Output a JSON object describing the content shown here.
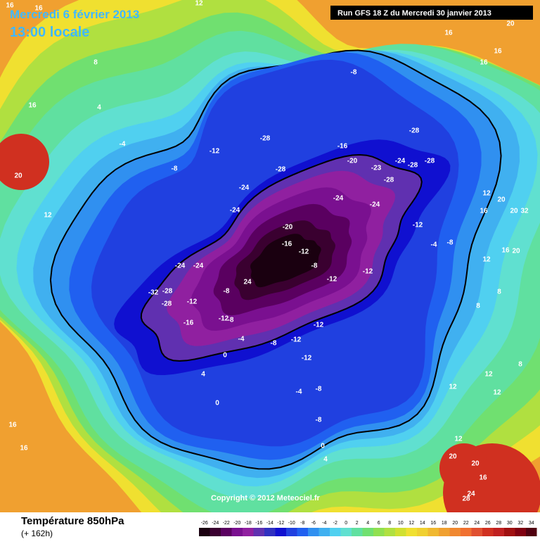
{
  "header": {
    "title": "Mercredi 6 février 2013",
    "time": "13:00 locale",
    "run": "Run GFS 18 Z du Mercredi 30 janvier 2013"
  },
  "footer": {
    "title": "Température 850hPa",
    "lead": "(+ 162h)",
    "copyright": "Copyright © 2012 Meteociel.fr"
  },
  "colorbar": {
    "ticks": [
      -26,
      -24,
      -22,
      -20,
      -18,
      -16,
      -14,
      -12,
      -10,
      -8,
      -6,
      -4,
      -2,
      0,
      2,
      4,
      6,
      8,
      10,
      12,
      14,
      16,
      18,
      20,
      22,
      24,
      26,
      28,
      30,
      32,
      34
    ],
    "colors": [
      "#1a0010",
      "#3a0030",
      "#5a0060",
      "#7a1090",
      "#9020a0",
      "#6030b0",
      "#3030c0",
      "#1010d0",
      "#2040e0",
      "#2060f0",
      "#3090f0",
      "#40b0f0",
      "#50d0f0",
      "#60e0d0",
      "#60e0a0",
      "#70e070",
      "#90e050",
      "#b0e040",
      "#d0e030",
      "#f0e030",
      "#f0d030",
      "#f0b830",
      "#f0a030",
      "#f08830",
      "#f07030",
      "#e05030",
      "#d03020",
      "#c02020",
      "#a01010",
      "#800010",
      "#500010"
    ]
  },
  "contour_labels": [
    16,
    16,
    12,
    20,
    16,
    16,
    16,
    -8,
    8,
    16,
    4,
    20,
    12,
    -4,
    -8,
    -12,
    -28,
    -28,
    -16,
    -20,
    -28,
    -23,
    -24,
    -28,
    -28,
    -28,
    -24,
    -24,
    -24,
    -24,
    -20,
    -16,
    -12,
    -12,
    -8,
    -4,
    -24,
    -24,
    24,
    -8,
    -12,
    -12,
    -32,
    -28,
    -28,
    -12,
    -16,
    -12,
    -8,
    -8,
    -12,
    -12,
    -8,
    -12,
    -4,
    4,
    0,
    0,
    -4,
    -8,
    -8,
    0,
    4,
    16,
    16,
    12,
    20,
    16,
    20,
    32,
    16,
    20,
    12,
    12,
    12,
    12,
    12,
    20,
    20,
    16,
    28,
    24,
    8,
    8,
    8
  ]
}
